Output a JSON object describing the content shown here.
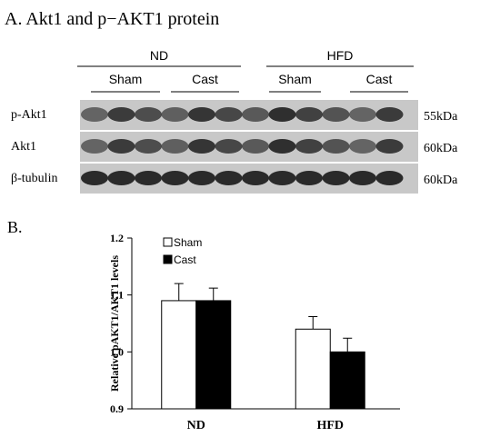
{
  "panel_a": {
    "title": "A. Akt1 and p−AKT1 protein",
    "groups": [
      {
        "label": "ND",
        "subgroups": [
          "Sham",
          "Cast"
        ]
      },
      {
        "label": "HFD",
        "subgroups": [
          "Sham",
          "Cast"
        ]
      }
    ],
    "rows": [
      {
        "label": "p-Akt1",
        "size": "55kDa"
      },
      {
        "label": "Akt1",
        "size": "60kDa"
      },
      {
        "label": "β-tubulin",
        "size": "60kDa"
      }
    ]
  },
  "panel_b_label": "B.",
  "chart_data": {
    "type": "bar",
    "y_label": "Relative pAKT1/AKT1  levels",
    "categories": [
      "ND",
      "HFD"
    ],
    "series": [
      {
        "name": "Sham",
        "color": "#ffffff",
        "values": [
          1.09,
          1.04
        ],
        "errors": [
          0.03,
          0.022
        ]
      },
      {
        "name": "Cast",
        "color": "#000000",
        "values": [
          1.09,
          1.0
        ],
        "errors": [
          0.022,
          0.024
        ]
      }
    ],
    "ylim": [
      0.9,
      1.2
    ],
    "yticks": [
      0.9,
      {
        "value": 1.0,
        "label": "1.0"
      },
      1.1,
      1.2
    ]
  }
}
